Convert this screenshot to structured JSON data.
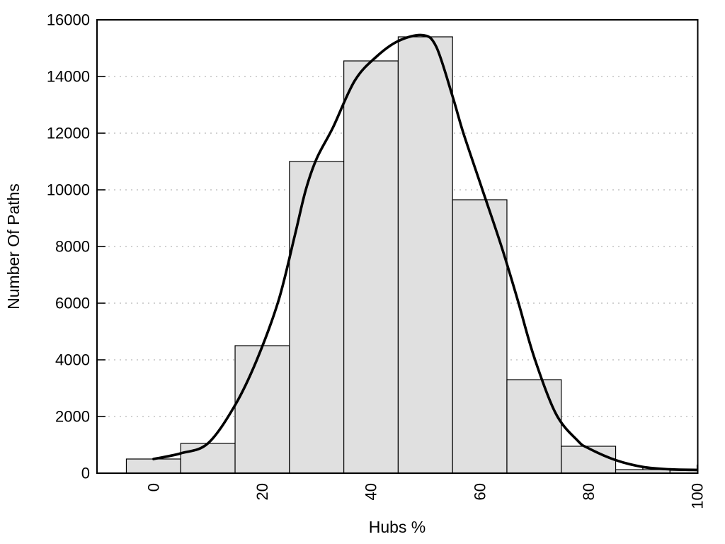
{
  "chart_data": {
    "type": "bar",
    "subtype": "histogram_with_density_curve",
    "title": "",
    "xlabel": "Hubs %",
    "ylabel": "Number Of Paths",
    "categories": [
      0,
      10,
      20,
      30,
      40,
      50,
      60,
      70,
      80,
      90,
      100
    ],
    "values": [
      500,
      1050,
      4500,
      11000,
      14550,
      15400,
      9650,
      3300,
      950,
      125,
      100
    ],
    "bin_width": 10,
    "series": [
      {
        "name": "density-curve",
        "type": "line",
        "points": [
          [
            0,
            500
          ],
          [
            5,
            700
          ],
          [
            10,
            1050
          ],
          [
            15,
            2400
          ],
          [
            19,
            4000
          ],
          [
            23,
            6100
          ],
          [
            26,
            8400
          ],
          [
            28,
            10000
          ],
          [
            30,
            11100
          ],
          [
            33,
            12200
          ],
          [
            37,
            13850
          ],
          [
            41,
            14700
          ],
          [
            45,
            15250
          ],
          [
            49.5,
            15460
          ],
          [
            52,
            15050
          ],
          [
            55,
            13300
          ],
          [
            57,
            12000
          ],
          [
            60.5,
            10000
          ],
          [
            64,
            8000
          ],
          [
            67,
            6100
          ],
          [
            70,
            4100
          ],
          [
            74,
            2100
          ],
          [
            78,
            1150
          ],
          [
            80,
            880
          ],
          [
            85,
            460
          ],
          [
            90,
            220
          ],
          [
            95,
            135
          ],
          [
            100,
            115
          ]
        ]
      }
    ],
    "xlim": [
      -10.4,
      100.1
    ],
    "ylim": [
      0,
      16000
    ],
    "x_tick_values": [
      0,
      20,
      40,
      60,
      80,
      100
    ],
    "x_minor_tick_values": [
      10,
      30,
      50,
      70,
      90
    ],
    "y_tick_values": [
      0,
      2000,
      4000,
      6000,
      8000,
      10000,
      12000,
      14000,
      16000
    ],
    "x_tick_labels": [
      "0",
      "20",
      "40",
      "60",
      "80",
      "100"
    ],
    "y_tick_labels": [
      "0",
      "2000",
      "4000",
      "6000",
      "8000",
      "10000",
      "12000",
      "14000",
      "16000"
    ],
    "grid": {
      "horizontal": "dotted",
      "vertical": "none"
    },
    "legend_position": "none",
    "colors": {
      "background": "#ffffff",
      "bar_fill": "#e0e0e0",
      "bar_border": "#000000",
      "curve": "#000000",
      "gridline": "#c3c3c3",
      "frame": "#000000",
      "text": "#000000"
    }
  }
}
